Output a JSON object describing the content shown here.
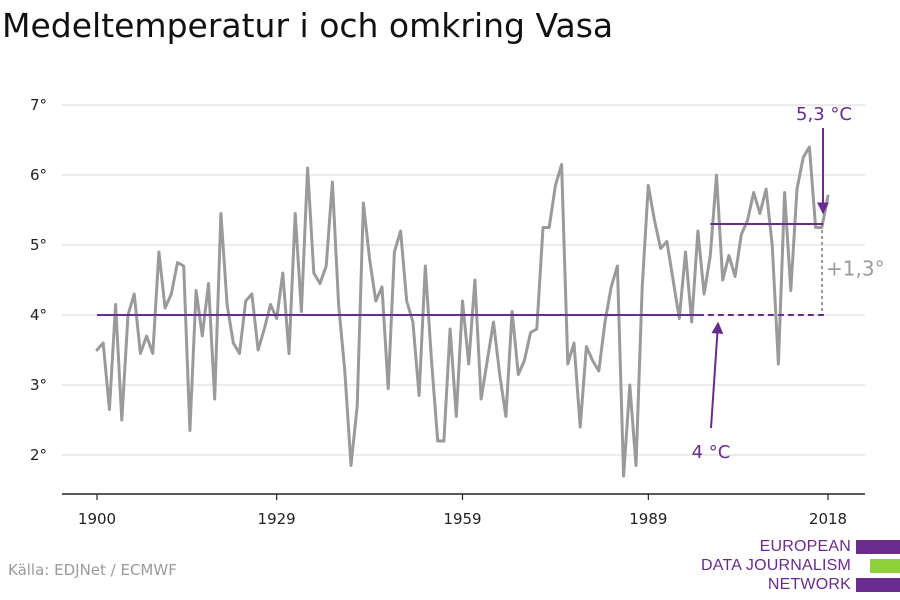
{
  "title": "Medeltemperatur i och omkring Vasa",
  "source": "Källa: EDJNet / ECMWF",
  "logo": {
    "lines": [
      "EUROPEAN",
      "DATA JOURNALISM",
      "NETWORK"
    ],
    "colors": [
      "#6a2b8f",
      "#8fcf3c",
      "#6a2b8f"
    ]
  },
  "colors": {
    "series": "#9a9a9a",
    "accent": "#6a2b8f",
    "diff": "#9a9a9a"
  },
  "chart_data": {
    "type": "line",
    "title": "Medeltemperatur i och omkring Vasa",
    "xlabel": "",
    "ylabel": "",
    "xlim": [
      1900,
      2018
    ],
    "ylim": [
      1.4,
      7.4
    ],
    "x_ticks": [
      1900,
      1929,
      1959,
      1989,
      2018
    ],
    "y_ticks": [
      2,
      3,
      4,
      5,
      6,
      7
    ],
    "y_tick_labels": [
      "2°",
      "3°",
      "4°",
      "5°",
      "6°",
      "7°"
    ],
    "grid": true,
    "x": [
      1900,
      1901,
      1902,
      1903,
      1904,
      1905,
      1906,
      1907,
      1908,
      1909,
      1910,
      1911,
      1912,
      1913,
      1914,
      1915,
      1916,
      1917,
      1918,
      1919,
      1920,
      1921,
      1922,
      1923,
      1924,
      1925,
      1926,
      1927,
      1928,
      1929,
      1930,
      1931,
      1932,
      1933,
      1934,
      1935,
      1936,
      1937,
      1938,
      1939,
      1940,
      1941,
      1942,
      1943,
      1944,
      1945,
      1946,
      1947,
      1948,
      1949,
      1950,
      1951,
      1952,
      1953,
      1954,
      1955,
      1956,
      1957,
      1958,
      1959,
      1960,
      1961,
      1962,
      1963,
      1964,
      1965,
      1966,
      1967,
      1968,
      1969,
      1970,
      1971,
      1972,
      1973,
      1974,
      1975,
      1976,
      1977,
      1978,
      1979,
      1980,
      1981,
      1982,
      1983,
      1984,
      1985,
      1986,
      1987,
      1988,
      1989,
      1990,
      1991,
      1992,
      1993,
      1994,
      1995,
      1996,
      1997,
      1998,
      1999,
      2000,
      2001,
      2002,
      2003,
      2004,
      2005,
      2006,
      2007,
      2008,
      2009,
      2010,
      2011,
      2012,
      2013,
      2014,
      2015,
      2016,
      2017,
      2018
    ],
    "series": [
      {
        "values": [
          3.5,
          3.6,
          2.65,
          4.15,
          2.5,
          4.0,
          4.3,
          3.45,
          3.7,
          3.45,
          4.9,
          4.1,
          4.3,
          4.75,
          4.7,
          2.35,
          4.35,
          3.7,
          4.45,
          2.8,
          5.45,
          4.15,
          3.6,
          3.45,
          4.2,
          4.3,
          3.5,
          3.8,
          4.15,
          3.95,
          4.6,
          3.45,
          5.45,
          4.05,
          6.1,
          4.6,
          4.45,
          4.7,
          5.9,
          4.15,
          3.2,
          1.85,
          2.7,
          5.6,
          4.8,
          4.2,
          4.4,
          2.95,
          4.9,
          5.2,
          4.2,
          3.9,
          2.85,
          4.7,
          3.35,
          2.2,
          2.2,
          3.8,
          2.55,
          4.2,
          3.3,
          4.5,
          2.8,
          3.35,
          3.9,
          3.15,
          2.55,
          4.05,
          3.15,
          3.35,
          3.75,
          3.8,
          5.25,
          5.25,
          5.85,
          6.15,
          3.3,
          3.6,
          2.4,
          3.55,
          3.35,
          3.2,
          3.9,
          4.4,
          4.7,
          1.7,
          3.0,
          1.85,
          4.4,
          5.85,
          5.35,
          4.95,
          5.05,
          4.5,
          3.95,
          4.9,
          3.9,
          5.2,
          4.3,
          4.85,
          6.0,
          4.5,
          4.85,
          4.55,
          5.15,
          5.35,
          5.75,
          5.45,
          5.8,
          5.0,
          3.3,
          5.75,
          4.35,
          5.8,
          6.25,
          6.4,
          5.25,
          5.25,
          5.7
        ]
      }
    ],
    "annotations": {
      "baseline": {
        "value": 4.0,
        "from": 1900,
        "to": 2018,
        "solid_to": 1997,
        "label": "4 °C"
      },
      "recent": {
        "value": 5.3,
        "from": 1999,
        "to": 2018,
        "label": "5,3 °C"
      },
      "diff_label": "+1,3°"
    }
  }
}
